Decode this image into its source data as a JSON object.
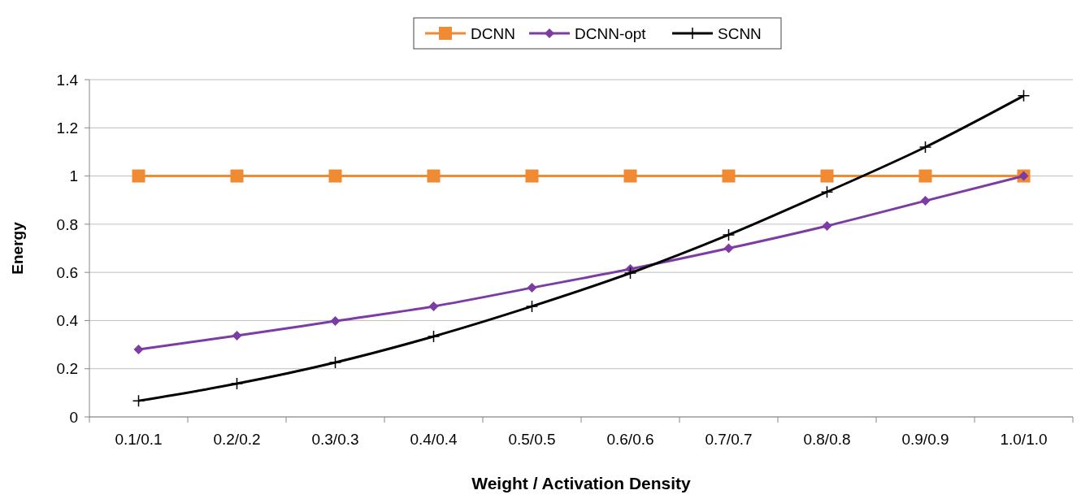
{
  "chart_data": {
    "type": "line",
    "xlabel": "Weight / Activation Density",
    "ylabel": "Energy",
    "categories": [
      "0.1/0.1",
      "0.2/0.2",
      "0.3/0.3",
      "0.4/0.4",
      "0.5/0.5",
      "0.6/0.6",
      "0.7/0.7",
      "0.8/0.8",
      "0.9/0.9",
      "1.0/1.0"
    ],
    "series": [
      {
        "name": "DCNN",
        "color": "#f08a33",
        "marker": "square",
        "values": [
          1,
          1,
          1,
          1,
          1,
          1,
          1,
          1,
          1,
          1
        ]
      },
      {
        "name": "DCNN-opt",
        "color": "#7d3ca3",
        "marker": "diamond",
        "values": [
          0.28,
          0.337,
          0.398,
          0.459,
          0.536,
          0.614,
          0.7,
          0.793,
          0.897,
          1.0
        ]
      },
      {
        "name": "SCNN",
        "color": "#000000",
        "marker": "cross",
        "values": [
          0.067,
          0.138,
          0.226,
          0.334,
          0.459,
          0.597,
          0.756,
          0.934,
          1.12,
          1.333
        ]
      }
    ],
    "ylim": [
      0,
      1.4
    ],
    "yticks": [
      0,
      0.2,
      0.4,
      0.6,
      0.8,
      1,
      1.2,
      1.4
    ],
    "grid": "y",
    "legend": "top",
    "line_style": "solid"
  }
}
